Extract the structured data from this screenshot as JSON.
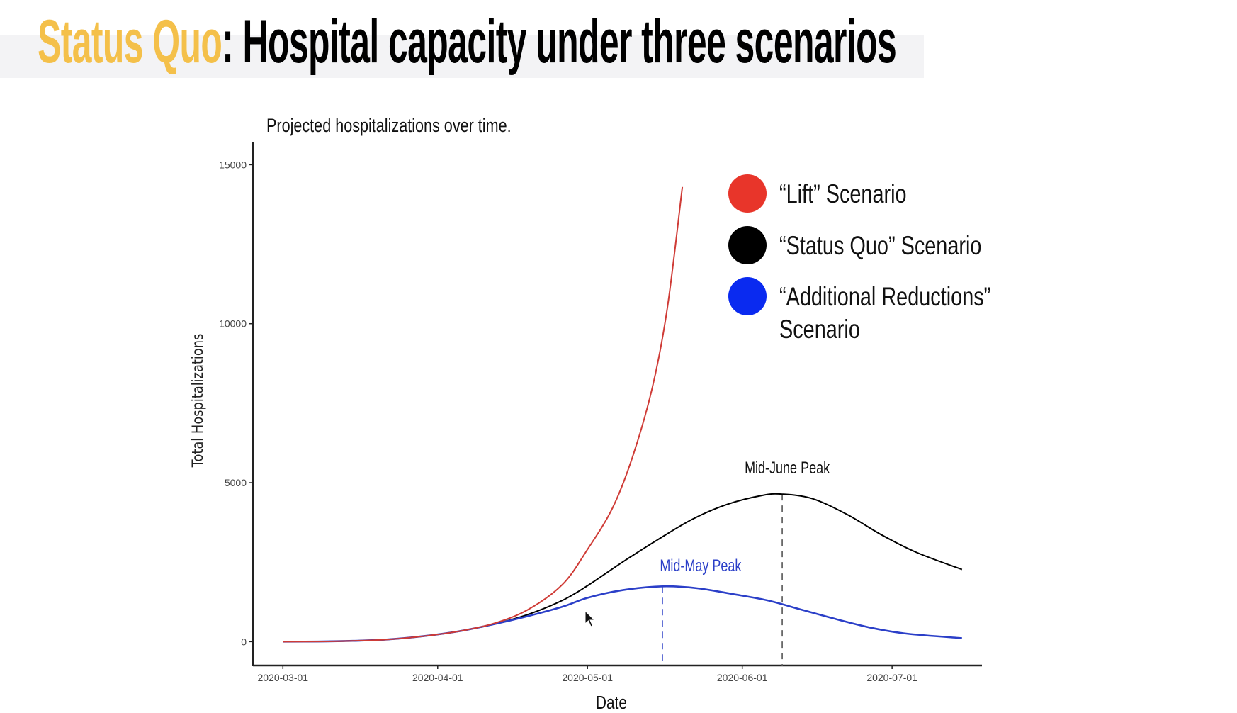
{
  "slide": {
    "title_highlight": "Status Quo",
    "title_rest": ": Hospital capacity under three scenarios",
    "highlight_color": "#f4c04a"
  },
  "chart_data": {
    "type": "line",
    "title": "Projected hospitalizations over time.",
    "xlabel": "Date",
    "ylabel": "Total Hospitalizations",
    "x_start_date": "2020-03-01",
    "xlim_days": [
      -6,
      140
    ],
    "ylim": [
      -750,
      15700
    ],
    "x_ticks": [
      {
        "label": "2020-03-01",
        "day": 0
      },
      {
        "label": "2020-04-01",
        "day": 31
      },
      {
        "label": "2020-05-01",
        "day": 61
      },
      {
        "label": "2020-06-01",
        "day": 92
      },
      {
        "label": "2020-07-01",
        "day": 122
      }
    ],
    "y_ticks": [
      {
        "label": "0",
        "value": 0
      },
      {
        "label": "5000",
        "value": 5000
      },
      {
        "label": "10000",
        "value": 10000
      },
      {
        "label": "15000",
        "value": 15000
      }
    ],
    "grid": false,
    "legend_position": "top-right",
    "series": [
      {
        "name": "Status Quo",
        "legend": "“Status Quo” Scenario",
        "color": "#000000",
        "legend_color": "#000000",
        "points": [
          [
            0,
            0
          ],
          [
            7,
            5
          ],
          [
            14,
            25
          ],
          [
            21,
            70
          ],
          [
            28,
            170
          ],
          [
            35,
            320
          ],
          [
            42,
            540
          ],
          [
            49,
            850
          ],
          [
            56,
            1300
          ],
          [
            61,
            1760
          ],
          [
            68,
            2500
          ],
          [
            75,
            3200
          ],
          [
            82,
            3850
          ],
          [
            89,
            4320
          ],
          [
            96,
            4600
          ],
          [
            100,
            4640
          ],
          [
            106,
            4500
          ],
          [
            113,
            4000
          ],
          [
            120,
            3350
          ],
          [
            127,
            2800
          ],
          [
            136,
            2270
          ]
        ]
      },
      {
        "name": "Additional Reductions",
        "legend": "“Additional Reductions”",
        "legend_line2": "Scenario",
        "color": "#2b3fc8",
        "legend_color": "#0a2af0",
        "points": [
          [
            0,
            0
          ],
          [
            7,
            5
          ],
          [
            14,
            25
          ],
          [
            21,
            70
          ],
          [
            28,
            170
          ],
          [
            35,
            320
          ],
          [
            42,
            540
          ],
          [
            49,
            800
          ],
          [
            56,
            1100
          ],
          [
            61,
            1380
          ],
          [
            68,
            1620
          ],
          [
            76,
            1740
          ],
          [
            83,
            1680
          ],
          [
            90,
            1500
          ],
          [
            97,
            1300
          ],
          [
            104,
            1000
          ],
          [
            111,
            700
          ],
          [
            118,
            430
          ],
          [
            125,
            250
          ],
          [
            136,
            110
          ]
        ]
      },
      {
        "name": "Lift",
        "legend": "“Lift” Scenario",
        "color": "#cf3b36",
        "legend_color": "#e8352a",
        "points": [
          [
            0,
            0
          ],
          [
            7,
            5
          ],
          [
            14,
            25
          ],
          [
            21,
            70
          ],
          [
            28,
            170
          ],
          [
            35,
            320
          ],
          [
            42,
            560
          ],
          [
            49,
            1000
          ],
          [
            56,
            1800
          ],
          [
            61,
            2900
          ],
          [
            66,
            4200
          ],
          [
            70,
            5800
          ],
          [
            74,
            8000
          ],
          [
            77,
            10500
          ],
          [
            80,
            14300
          ]
        ]
      }
    ],
    "annotations": [
      {
        "text": "Mid-June Peak",
        "day": 100,
        "value": 4640,
        "color": "#111111"
      },
      {
        "text": "Mid-May Peak",
        "day": 76,
        "value": 1740,
        "color": "#2b3fc8"
      }
    ]
  }
}
